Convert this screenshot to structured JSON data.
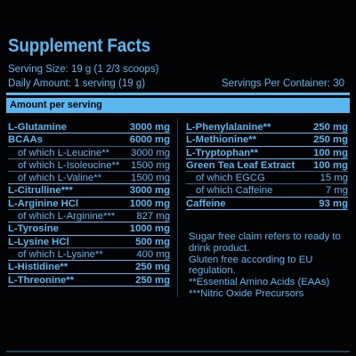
{
  "panel": {
    "title": "Supplement Facts",
    "serving_size": "Serving Size: 19 g (1 2/3 scoops)",
    "daily_amount": "Daily Amount: 1 serving (19 g)",
    "servings_per_container": "Servings Per Container: 30",
    "header": "Amount per serving"
  },
  "left_rows": [
    {
      "name": "L-Glutamine",
      "amount": "3000 mg",
      "style": "bold"
    },
    {
      "name": "BCAAs",
      "amount": "6000 mg",
      "style": "bold"
    },
    {
      "name": "of which L-Leucine**",
      "amount": "3000 mg",
      "style": "sub"
    },
    {
      "name": "of which L-Isoleucine**",
      "amount": "1500 mg",
      "style": "sub"
    },
    {
      "name": "of which L-Valine**",
      "amount": "1500 mg",
      "style": "sub"
    },
    {
      "name": "L-Citrulline***",
      "amount": "3000 mg",
      "style": "bold"
    },
    {
      "name": "L-Arginine HCl",
      "amount": "1000 mg",
      "style": "bold"
    },
    {
      "name": "of which L-Arginine***",
      "amount": "827 mg",
      "style": "sub"
    },
    {
      "name": "L-Tyrosine",
      "amount": "1000 mg",
      "style": "bold"
    },
    {
      "name": "L-Lysine HCl",
      "amount": "500 mg",
      "style": "bold"
    },
    {
      "name": "of which L-Lysine**",
      "amount": "400 mg",
      "style": "sub"
    },
    {
      "name": "L-Histidine**",
      "amount": "250 mg",
      "style": "bold"
    },
    {
      "name": "L-Threonine**",
      "amount": "250 mg",
      "style": "bold"
    }
  ],
  "right_rows": [
    {
      "name": "L-Phenylalanine**",
      "amount": "250 mg",
      "style": "bold"
    },
    {
      "name": "L-Methionine**",
      "amount": "250 mg",
      "style": "bold"
    },
    {
      "name": "L-Tryptophan**",
      "amount": "100 mg",
      "style": "bold"
    },
    {
      "name": "Green Tea Leaf Extract",
      "amount": "100 mg",
      "style": "bold"
    },
    {
      "name": "of which EGCG",
      "amount": "15 mg",
      "style": "sub"
    },
    {
      "name": "of which Caffeine",
      "amount": "7 mg",
      "style": "sub"
    },
    {
      "name": "Caffeine",
      "amount": "93 mg",
      "style": "bold"
    }
  ],
  "notes": [
    "Sugar free claim refers to ready to drink product.",
    "Gluten free according to EU regulation.",
    "**Essential Amino Acids (EAAs)",
    "***Nitric Oxide Precursors"
  ],
  "colors": {
    "accent": "#5ab6ee",
    "background": "#020305"
  }
}
